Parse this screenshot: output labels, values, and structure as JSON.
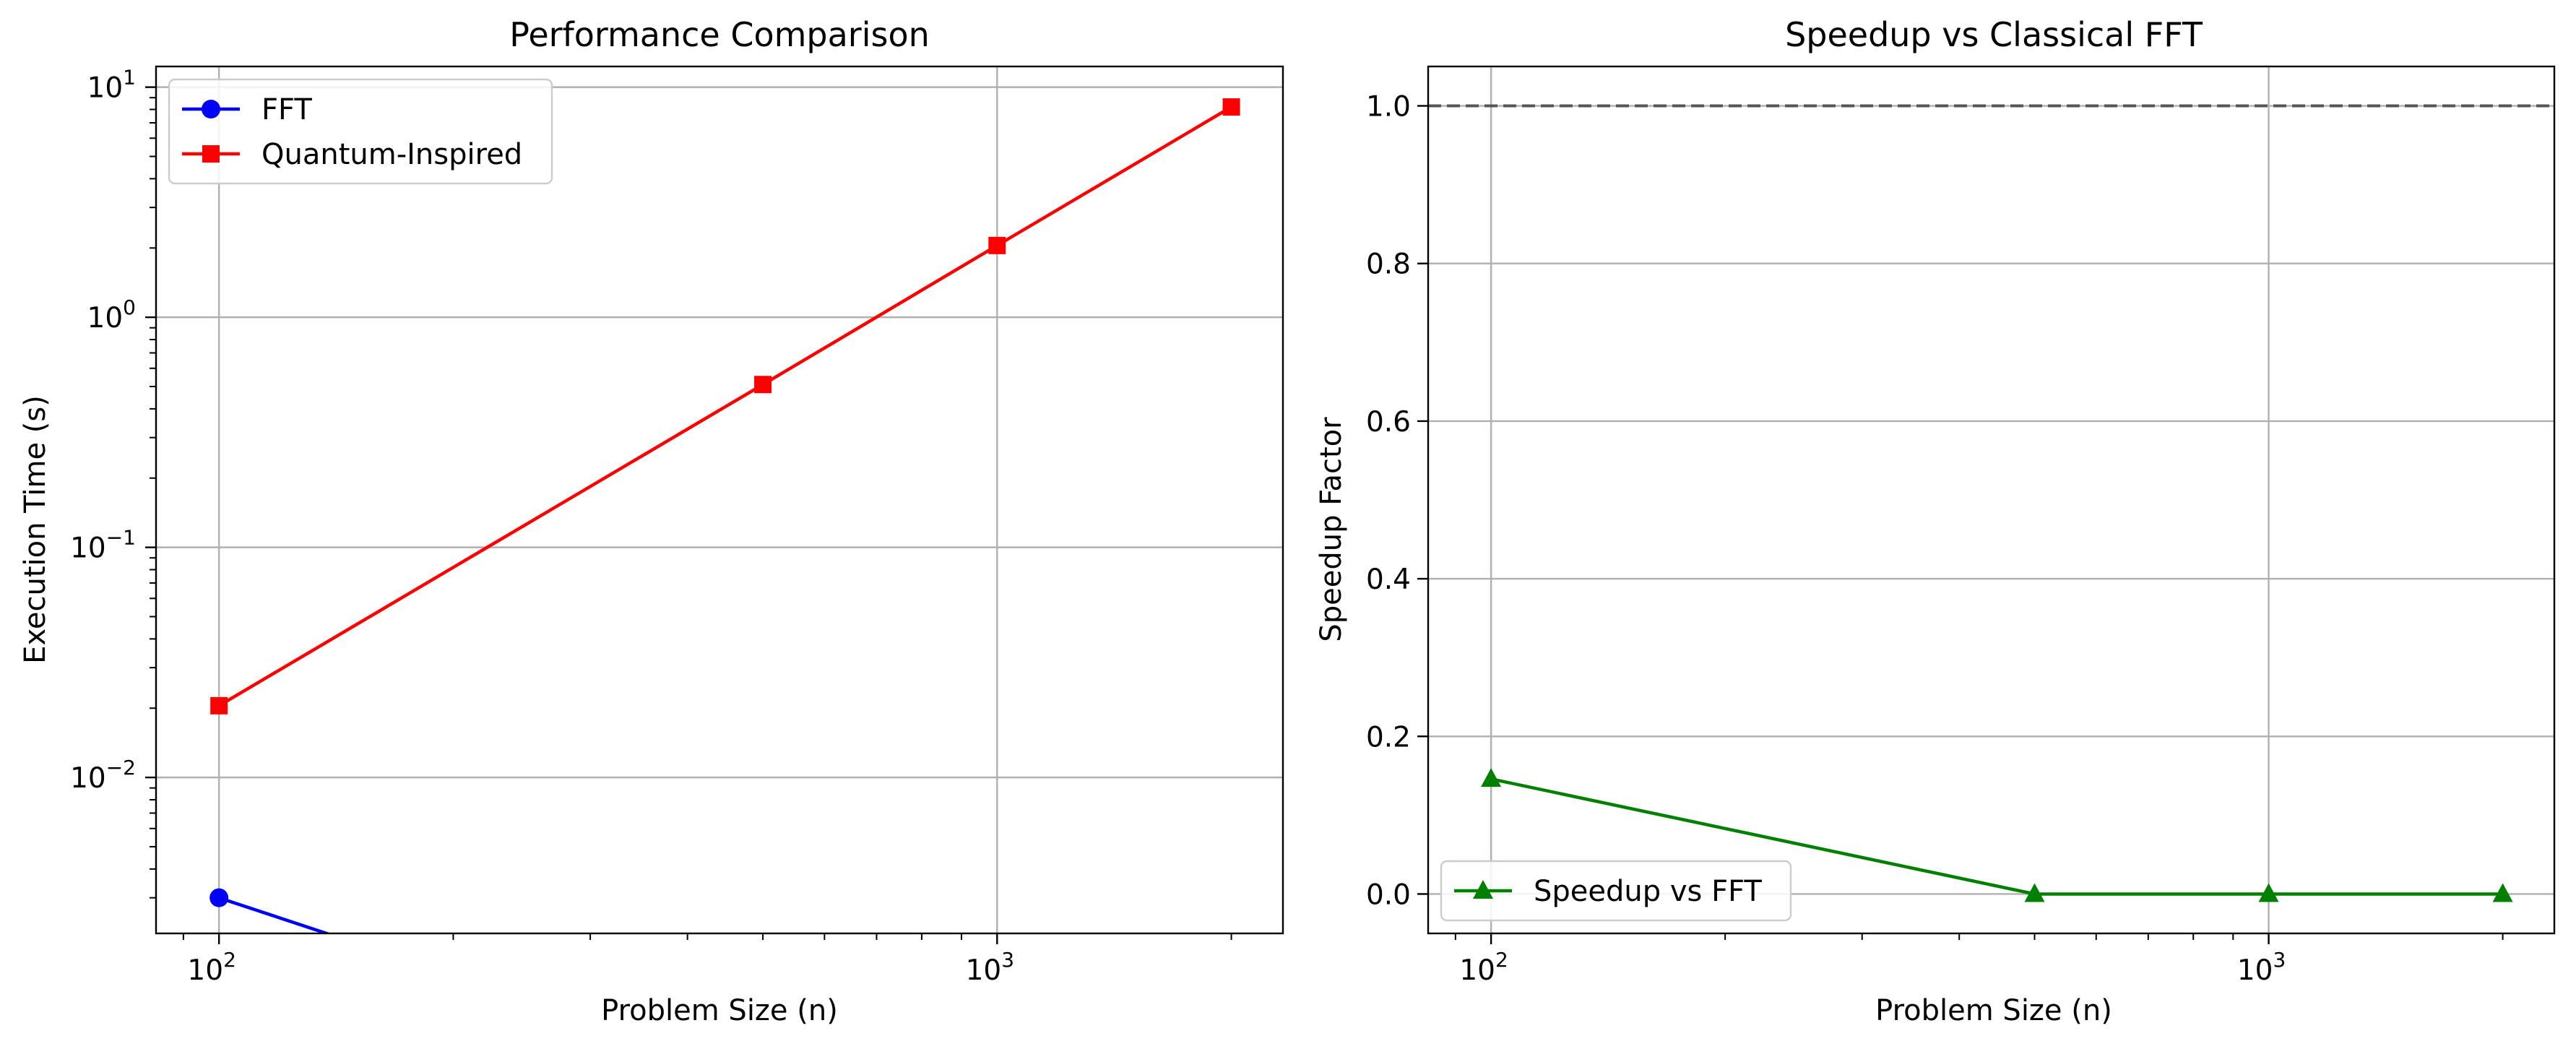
{
  "figure": {
    "colors": {
      "fft": "#0000ff",
      "quantum": "#ff0000",
      "speedup": "#008000",
      "grid": "#b0b0b0",
      "reference_line": "#555555",
      "legend_border": "#cccccc"
    }
  },
  "chart_data": [
    {
      "type": "line",
      "title": "Performance Comparison",
      "xlabel": "Problem Size (n)",
      "ylabel": "Execution Time (s)",
      "xscale": "log",
      "yscale": "log",
      "xlim": [
        83,
        2330
      ],
      "ylim": [
        0.0021,
        12.3
      ],
      "grid": true,
      "legend_position": "upper left",
      "x_ticks": [
        {
          "base": "10",
          "exp": "2",
          "value": 100
        },
        {
          "base": "10",
          "exp": "3",
          "value": 1000
        }
      ],
      "y_ticks": [
        {
          "base": "10",
          "exp": "1",
          "value": 10
        },
        {
          "base": "10",
          "exp": "0",
          "value": 1
        },
        {
          "base": "10",
          "exp": "−1",
          "value": 0.1
        },
        {
          "base": "10",
          "exp": "−2",
          "value": 0.01
        }
      ],
      "series": [
        {
          "name": "FFT",
          "marker": "circle",
          "color": "#0000ff",
          "x": [
            100,
            500,
            1000,
            2000
          ],
          "y": [
            0.003,
            0,
            0,
            0
          ]
        },
        {
          "name": "Quantum-Inspired",
          "marker": "square",
          "color": "#ff0000",
          "x": [
            100,
            500,
            1000,
            2000
          ],
          "y": [
            0.0205,
            0.51,
            2.05,
            8.2
          ]
        }
      ]
    },
    {
      "type": "line",
      "title": "Speedup vs Classical FFT",
      "xlabel": "Problem Size (n)",
      "ylabel": "Speedup Factor",
      "xscale": "log",
      "yscale": "linear",
      "xlim": [
        83,
        2330
      ],
      "ylim": [
        -0.05,
        1.05
      ],
      "grid": true,
      "legend_position": "lower left",
      "reference_line": {
        "y": 1.0,
        "style": "dashed"
      },
      "x_ticks": [
        {
          "base": "10",
          "exp": "2",
          "value": 100
        },
        {
          "base": "10",
          "exp": "3",
          "value": 1000
        }
      ],
      "y_ticks": [
        {
          "label": "0.0",
          "value": 0.0
        },
        {
          "label": "0.2",
          "value": 0.2
        },
        {
          "label": "0.4",
          "value": 0.4
        },
        {
          "label": "0.6",
          "value": 0.6
        },
        {
          "label": "0.8",
          "value": 0.8
        },
        {
          "label": "1.0",
          "value": 1.0
        }
      ],
      "series": [
        {
          "name": "Speedup vs FFT",
          "marker": "triangle",
          "color": "#008000",
          "x": [
            100,
            500,
            1000,
            2000
          ],
          "y": [
            0.146,
            0.0,
            0.0,
            0.0
          ]
        }
      ]
    }
  ]
}
